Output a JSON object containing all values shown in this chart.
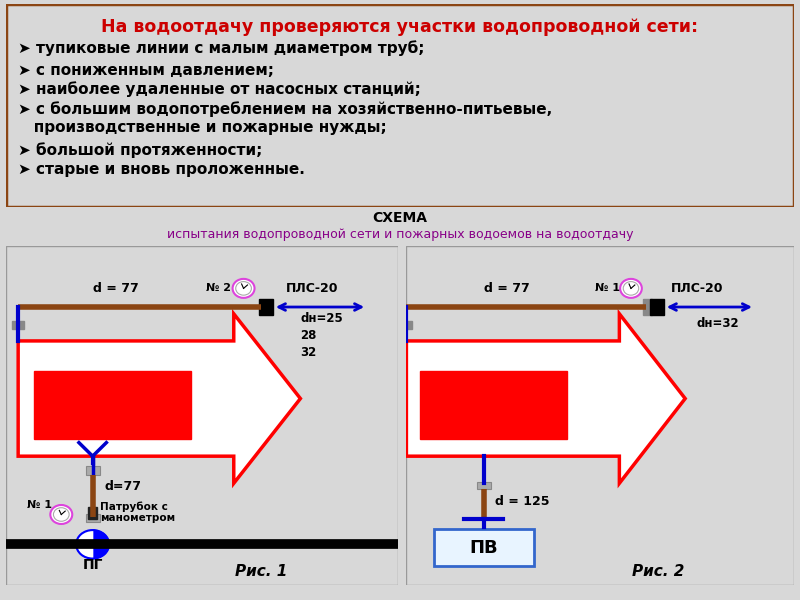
{
  "title_box_bg": "#ffffc0",
  "title_box_border": "#8B4513",
  "title_text": "На водоотдачу проверяются участки водопроводной сети:",
  "title_color": "#cc0000",
  "title_fontsize": 12.5,
  "bullet_items": [
    "тупиковые линии с малым диаметром труб;",
    "с пониженным давлением;",
    "наиболее удаленные от насосных станций;",
    "с большим водопотреблением на хозяйственно-питьевые,",
    "производственные и пожарные нужды;",
    "большой протяженности;",
    "старые и вновь проложенные."
  ],
  "bullet_prefix": [
    true,
    true,
    true,
    true,
    false,
    true,
    true
  ],
  "bullet_fontsize": 11,
  "schema_title1": "СХЕМА",
  "schema_title2": "испытания водопроводной сети и пожарных водоемов на водоотдачу",
  "schema_title_fontsize": 10,
  "fig_bg": "#d8d8d8",
  "diagram_bg": "#ffffff",
  "truck_color": "#ff0000",
  "truck_border": "#cc0000",
  "inner_rect_color": "#cc0000",
  "pipe_brown": "#8B4513",
  "pipe_blue": "#0000cc",
  "main_pipe_black": "#000000"
}
